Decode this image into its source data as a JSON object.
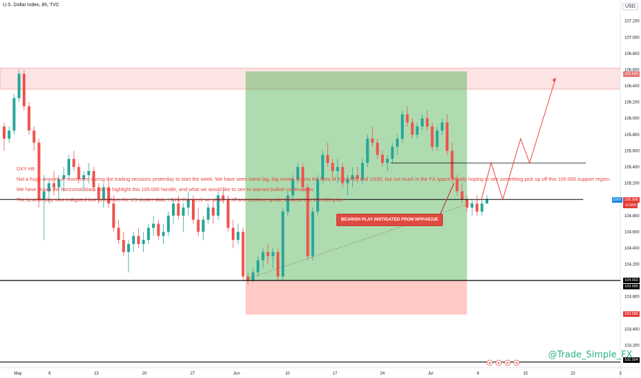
{
  "header": {
    "symbol_title": "U.S. Dollar Index, 8h, TVC",
    "currency": "USD"
  },
  "notes": [
    "DXY H8",
    "Not a huge amount of movement during the trading sessions yesterday to start the week. We have seen some big, big moves across the likes of XAUUSD and US30, but not much in the FX space. Really hoping to see something pick up off this 105.000 support region.",
    "We have drawn the horizontal black line to highlight this 105.000 handle, and what we would like to see to warrant bullish continuation.",
    "The bearish play was instigated last week from the US cluster data, I think this week we shake it off and continue upside towards that 106.500 price."
  ],
  "callout": "BEARISH PLAY INSTIGATED FROM NFP/AE/UE",
  "watermark": "@Trade_Simple_FX",
  "price_boxes": {
    "symbol_tag": "DXY",
    "last": "105.006",
    "change": "-0.56%",
    "target": "106.580",
    "entry": "104.002",
    "entry_low": "103.995",
    "stop": "103.580",
    "bottom": "102.994"
  },
  "colors": {
    "up": "#26a69a",
    "down": "#ef5350",
    "profit": "#4caf50",
    "loss": "#ff8a80",
    "zone": "#ffcdd2",
    "projection": "#e8413c"
  },
  "chart_data": {
    "type": "candlestick",
    "title": "U.S. Dollar Index, 8h, TVC",
    "xlabel": "",
    "ylabel": "",
    "ylim": [
      102.95,
      107.35
    ],
    "grid": false,
    "y_ticks": [
      "107.200",
      "107.000",
      "106.800",
      "106.600",
      "106.400",
      "106.200",
      "106.000",
      "105.800",
      "105.600",
      "105.400",
      "105.200",
      "105.000",
      "104.800",
      "104.600",
      "104.400",
      "104.200",
      "104.000",
      "103.800",
      "103.600",
      "103.400",
      "103.200",
      "103.000"
    ],
    "x_ticks": [
      "May",
      "6",
      "13",
      "20",
      "27",
      "Jun",
      "10",
      "17",
      "24",
      "Jul",
      "8",
      "15",
      "22",
      "2"
    ],
    "resistance_zone": [
      106.36,
      106.62
    ],
    "support_levels": [
      105.0,
      104.0,
      102.994
    ],
    "horizontal_line": {
      "level": 105.45
    },
    "long_position": {
      "entry": 104.0,
      "target": 106.58,
      "stop": 103.58
    },
    "projection_path": [
      105.0,
      105.45,
      105.0,
      105.75,
      105.45,
      106.5
    ],
    "candles": [
      [
        105.9,
        105.95,
        105.6,
        105.75
      ],
      [
        105.75,
        105.9,
        105.7,
        105.85
      ],
      [
        105.85,
        106.3,
        105.8,
        106.25
      ],
      [
        106.25,
        106.6,
        106.2,
        106.55
      ],
      [
        106.55,
        106.6,
        106.1,
        106.15
      ],
      [
        106.15,
        106.2,
        105.8,
        105.85
      ],
      [
        105.85,
        105.9,
        105.6,
        105.7
      ],
      [
        105.7,
        105.75,
        104.9,
        105.0
      ],
      [
        105.0,
        105.3,
        104.5,
        105.1
      ],
      [
        105.1,
        105.25,
        104.95,
        105.2
      ],
      [
        105.2,
        105.35,
        105.05,
        105.15
      ],
      [
        105.15,
        105.3,
        105.0,
        105.25
      ],
      [
        105.25,
        105.4,
        105.1,
        105.3
      ],
      [
        105.3,
        105.55,
        105.25,
        105.5
      ],
      [
        105.5,
        105.6,
        105.35,
        105.4
      ],
      [
        105.4,
        105.45,
        105.2,
        105.25
      ],
      [
        105.25,
        105.35,
        105.1,
        105.3
      ],
      [
        105.3,
        105.45,
        105.2,
        105.35
      ],
      [
        105.35,
        105.4,
        105.1,
        105.15
      ],
      [
        105.15,
        105.2,
        104.95,
        105.0
      ],
      [
        105.0,
        105.2,
        104.9,
        105.15
      ],
      [
        105.15,
        105.25,
        104.9,
        104.95
      ],
      [
        104.95,
        105.05,
        104.6,
        104.65
      ],
      [
        104.65,
        104.75,
        104.45,
        104.5
      ],
      [
        104.5,
        104.6,
        104.3,
        104.35
      ],
      [
        104.35,
        104.5,
        104.1,
        104.45
      ],
      [
        104.45,
        104.6,
        104.35,
        104.55
      ],
      [
        104.55,
        104.65,
        104.4,
        104.45
      ],
      [
        104.45,
        104.6,
        104.35,
        104.5
      ],
      [
        104.5,
        104.7,
        104.45,
        104.65
      ],
      [
        104.65,
        104.8,
        104.55,
        104.7
      ],
      [
        104.7,
        104.75,
        104.5,
        104.55
      ],
      [
        104.55,
        104.7,
        104.45,
        104.6
      ],
      [
        104.6,
        104.85,
        104.55,
        104.8
      ],
      [
        104.8,
        105.0,
        104.7,
        104.95
      ],
      [
        104.95,
        105.05,
        104.75,
        104.8
      ],
      [
        104.8,
        104.95,
        104.6,
        104.9
      ],
      [
        104.9,
        105.1,
        104.8,
        105.0
      ],
      [
        105.0,
        105.05,
        104.7,
        104.75
      ],
      [
        104.75,
        104.9,
        104.55,
        104.6
      ],
      [
        104.6,
        104.8,
        104.5,
        104.75
      ],
      [
        104.75,
        104.95,
        104.7,
        104.9
      ],
      [
        104.9,
        105.0,
        104.7,
        104.8
      ],
      [
        104.8,
        105.1,
        104.75,
        105.05
      ],
      [
        105.05,
        105.15,
        104.95,
        105.0
      ],
      [
        105.0,
        105.05,
        104.6,
        104.65
      ],
      [
        104.65,
        104.75,
        104.4,
        104.5
      ],
      [
        104.5,
        104.7,
        104.45,
        104.6
      ],
      [
        104.6,
        104.65,
        104.0,
        104.05
      ],
      [
        104.05,
        104.1,
        103.95,
        104.0
      ],
      [
        104.0,
        104.15,
        103.98,
        104.1
      ],
      [
        104.1,
        104.3,
        104.05,
        104.25
      ],
      [
        104.25,
        104.4,
        104.15,
        104.35
      ],
      [
        104.35,
        104.45,
        104.2,
        104.3
      ],
      [
        104.3,
        104.4,
        104.15,
        104.35
      ],
      [
        104.35,
        104.4,
        104.0,
        104.05
      ],
      [
        104.05,
        104.9,
        104.0,
        104.85
      ],
      [
        104.85,
        105.1,
        104.8,
        105.05
      ],
      [
        105.05,
        105.3,
        105.0,
        105.25
      ],
      [
        105.25,
        105.45,
        105.2,
        105.4
      ],
      [
        105.4,
        105.45,
        105.1,
        105.15
      ],
      [
        105.15,
        105.2,
        104.25,
        104.3
      ],
      [
        104.3,
        104.9,
        104.25,
        104.85
      ],
      [
        104.85,
        105.3,
        104.8,
        105.25
      ],
      [
        105.25,
        105.6,
        105.2,
        105.55
      ],
      [
        105.55,
        105.7,
        105.4,
        105.45
      ],
      [
        105.45,
        105.5,
        105.25,
        105.35
      ],
      [
        105.35,
        105.5,
        105.2,
        105.4
      ],
      [
        105.4,
        105.45,
        105.15,
        105.2
      ],
      [
        105.2,
        105.3,
        105.05,
        105.25
      ],
      [
        105.25,
        105.4,
        105.15,
        105.3
      ],
      [
        105.3,
        105.4,
        105.2,
        105.25
      ],
      [
        105.25,
        105.5,
        105.2,
        105.45
      ],
      [
        105.45,
        105.8,
        105.4,
        105.75
      ],
      [
        105.75,
        105.9,
        105.65,
        105.7
      ],
      [
        105.7,
        105.75,
        105.5,
        105.55
      ],
      [
        105.55,
        105.6,
        105.4,
        105.45
      ],
      [
        105.45,
        105.55,
        105.35,
        105.5
      ],
      [
        105.5,
        105.7,
        105.45,
        105.65
      ],
      [
        105.65,
        105.8,
        105.55,
        105.75
      ],
      [
        105.75,
        106.1,
        105.7,
        106.05
      ],
      [
        106.05,
        106.15,
        105.9,
        105.95
      ],
      [
        105.95,
        106.0,
        105.75,
        105.8
      ],
      [
        105.8,
        105.95,
        105.75,
        105.9
      ],
      [
        105.9,
        106.05,
        105.85,
        106.0
      ],
      [
        106.0,
        106.1,
        105.85,
        105.9
      ],
      [
        105.9,
        105.95,
        105.6,
        105.65
      ],
      [
        105.65,
        105.9,
        105.6,
        105.85
      ],
      [
        105.85,
        106.0,
        105.8,
        105.95
      ],
      [
        105.95,
        106.05,
        105.55,
        105.6
      ],
      [
        105.6,
        105.7,
        105.2,
        105.25
      ],
      [
        105.25,
        105.3,
        105.05,
        105.1
      ],
      [
        105.1,
        105.2,
        104.95,
        105.0
      ],
      [
        105.0,
        105.05,
        104.85,
        104.9
      ],
      [
        104.9,
        105.0,
        104.8,
        104.95
      ],
      [
        104.95,
        105.05,
        104.8,
        104.85
      ],
      [
        104.85,
        105.0,
        104.8,
        104.95
      ],
      [
        104.95,
        105.05,
        104.95,
        105.006
      ]
    ],
    "series": [],
    "legend": "none"
  }
}
